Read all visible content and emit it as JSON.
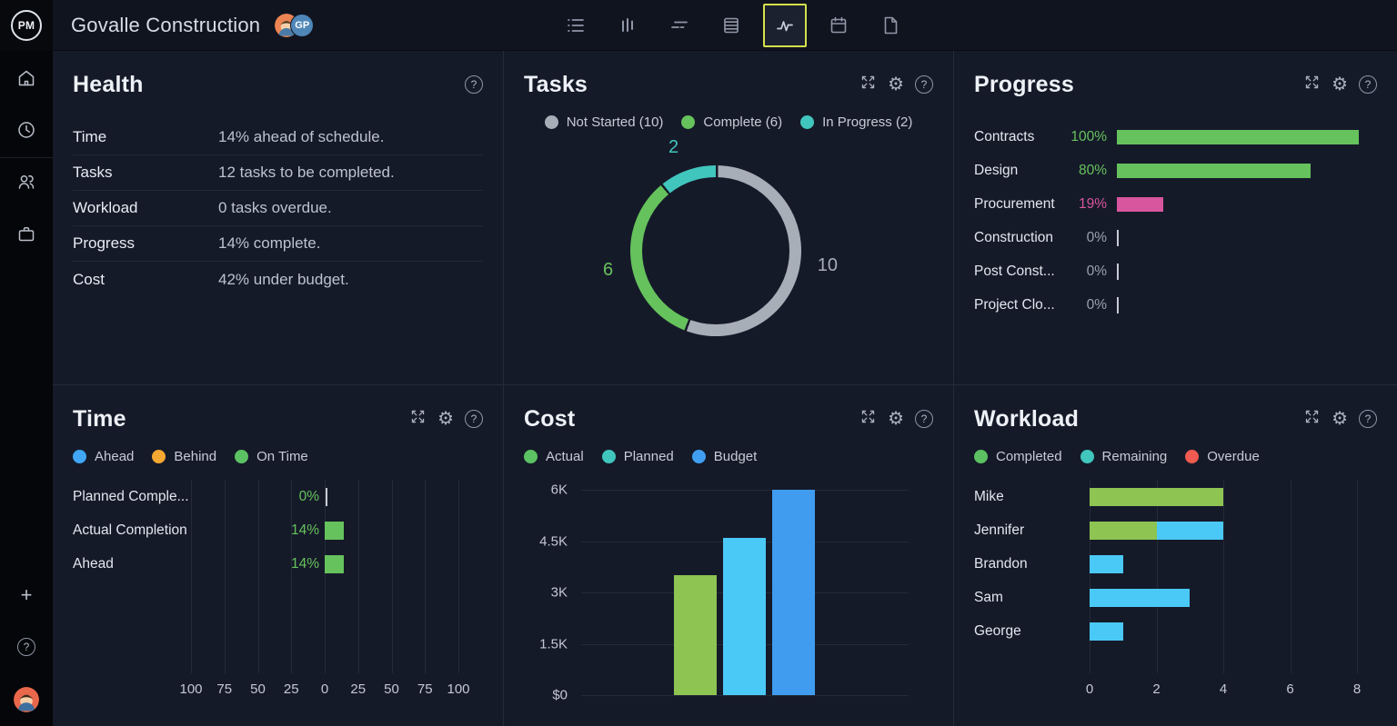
{
  "topbar": {
    "logo": "PM",
    "title": "Govalle Construction",
    "avatars": [
      {
        "type": "image",
        "name": "member-avatar"
      },
      {
        "type": "initials",
        "initials": "GP"
      }
    ],
    "views": [
      {
        "name": "list"
      },
      {
        "name": "board"
      },
      {
        "name": "gantt"
      },
      {
        "name": "sheet"
      },
      {
        "name": "dashboard",
        "active": true
      },
      {
        "name": "calendar"
      },
      {
        "name": "docs"
      }
    ],
    "active_view_border": "#d5e14b"
  },
  "icons": {
    "help": "?",
    "gear": "⚙",
    "plus": "+"
  },
  "colors": {
    "panel_bg": "#151a29",
    "grid": "#242a38",
    "tick": "#c6cbd5",
    "muted_pct": "#9ba1ad",
    "green": "#66c25c",
    "yellow_green": "#8dc452",
    "teal": "#41c6bd",
    "cyan": "#4ac9f6",
    "blue": "#3f9cee",
    "legend_blue": "#41a6f5",
    "orange": "#f6a832",
    "red": "#f05a50",
    "pink": "#d8569d",
    "gray": "#a8aeb8"
  },
  "panels": {
    "health": {
      "title": "Health",
      "rows": [
        {
          "label": "Time",
          "value": "14% ahead of schedule."
        },
        {
          "label": "Tasks",
          "value": "12 tasks to be completed."
        },
        {
          "label": "Workload",
          "value": "0 tasks overdue."
        },
        {
          "label": "Progress",
          "value": "14% complete."
        },
        {
          "label": "Cost",
          "value": "42% under budget."
        }
      ]
    },
    "tasks": {
      "title": "Tasks",
      "chart_data": {
        "type": "pie",
        "style": "donut",
        "start": "top",
        "direction": "clockwise",
        "segments": [
          {
            "label": "Not Started",
            "legend": "Not Started (10)",
            "value": 10,
            "color": "#a8aeb8",
            "callout": "10"
          },
          {
            "label": "Complete",
            "legend": "Complete (6)",
            "value": 6,
            "color": "#66c25c",
            "callout": "6"
          },
          {
            "label": "In Progress",
            "legend": "In Progress (2)",
            "value": 2,
            "color": "#41c6bd",
            "callout": "2"
          }
        ],
        "total": 18
      }
    },
    "progress": {
      "title": "Progress",
      "chart_data": {
        "type": "bar",
        "orientation": "horizontal",
        "max": 100,
        "rows": [
          {
            "label": "Contracts",
            "pct": 100,
            "pct_text": "100%",
            "color": "#66c25c"
          },
          {
            "label": "Design",
            "pct": 80,
            "pct_text": "80%",
            "color": "#66c25c"
          },
          {
            "label": "Procurement",
            "pct": 19,
            "pct_text": "19%",
            "color": "#d8569d"
          },
          {
            "label": "Construction",
            "pct": 0,
            "pct_text": "0%",
            "color": null
          },
          {
            "label": "Post Const...",
            "pct": 0,
            "pct_text": "0%",
            "color": null
          },
          {
            "label": "Project Clo...",
            "pct": 0,
            "pct_text": "0%",
            "color": null
          }
        ]
      }
    },
    "time": {
      "title": "Time",
      "legend": [
        {
          "label": "Ahead",
          "color": "#41a6f5"
        },
        {
          "label": "Behind",
          "color": "#f6a832"
        },
        {
          "label": "On Time",
          "color": "#5cc162"
        }
      ],
      "chart_data": {
        "type": "bar",
        "orientation": "horizontal-mirrored",
        "axis_ticks": [
          "100",
          "75",
          "50",
          "25",
          "0",
          "25",
          "50",
          "75",
          "100"
        ],
        "axis_range": [
          -100,
          100
        ],
        "rows": [
          {
            "label": "Planned Comple...",
            "value": 0,
            "value_text": "0%",
            "color": "#66c25c"
          },
          {
            "label": "Actual Completion",
            "value": 14,
            "value_text": "14%",
            "color": "#66c25c"
          },
          {
            "label": "Ahead",
            "value": 14,
            "value_text": "14%",
            "color": "#66c25c"
          }
        ]
      }
    },
    "cost": {
      "title": "Cost",
      "legend": [
        {
          "label": "Actual",
          "color": "#5cc162"
        },
        {
          "label": "Planned",
          "color": "#41c6bd"
        },
        {
          "label": "Budget",
          "color": "#419ff2"
        }
      ],
      "chart_data": {
        "type": "bar",
        "categories": [
          "Actual",
          "Planned",
          "Budget"
        ],
        "values": [
          3500,
          4600,
          6000
        ],
        "bar_colors": [
          "#8dc452",
          "#4ac9f6",
          "#3f9cee"
        ],
        "ylim": [
          0,
          6000
        ],
        "y_ticks": [
          {
            "text": "6K",
            "value": 6000
          },
          {
            "text": "4.5K",
            "value": 4500
          },
          {
            "text": "3K",
            "value": 3000
          },
          {
            "text": "1.5K",
            "value": 1500
          },
          {
            "text": "$0",
            "value": 0
          }
        ]
      }
    },
    "workload": {
      "title": "Workload",
      "legend": [
        {
          "label": "Completed",
          "color": "#5cc162"
        },
        {
          "label": "Remaining",
          "color": "#41c6bd"
        },
        {
          "label": "Overdue",
          "color": "#f05a50"
        }
      ],
      "chart_data": {
        "type": "bar",
        "orientation": "horizontal-stacked",
        "axis_ticks": [
          "0",
          "2",
          "4",
          "6",
          "8"
        ],
        "xlim": [
          0,
          8
        ],
        "series_colors": {
          "completed": "#8dc452",
          "remaining": "#4ac9f6",
          "overdue": "#f05a50"
        },
        "rows": [
          {
            "label": "Mike",
            "completed": 4,
            "remaining": 0,
            "overdue": 0
          },
          {
            "label": "Jennifer",
            "completed": 2,
            "remaining": 2,
            "overdue": 0
          },
          {
            "label": "Brandon",
            "completed": 0,
            "remaining": 1,
            "overdue": 0
          },
          {
            "label": "Sam",
            "completed": 0,
            "remaining": 3,
            "overdue": 0
          },
          {
            "label": "George",
            "completed": 0,
            "remaining": 1,
            "overdue": 0
          }
        ]
      }
    }
  }
}
